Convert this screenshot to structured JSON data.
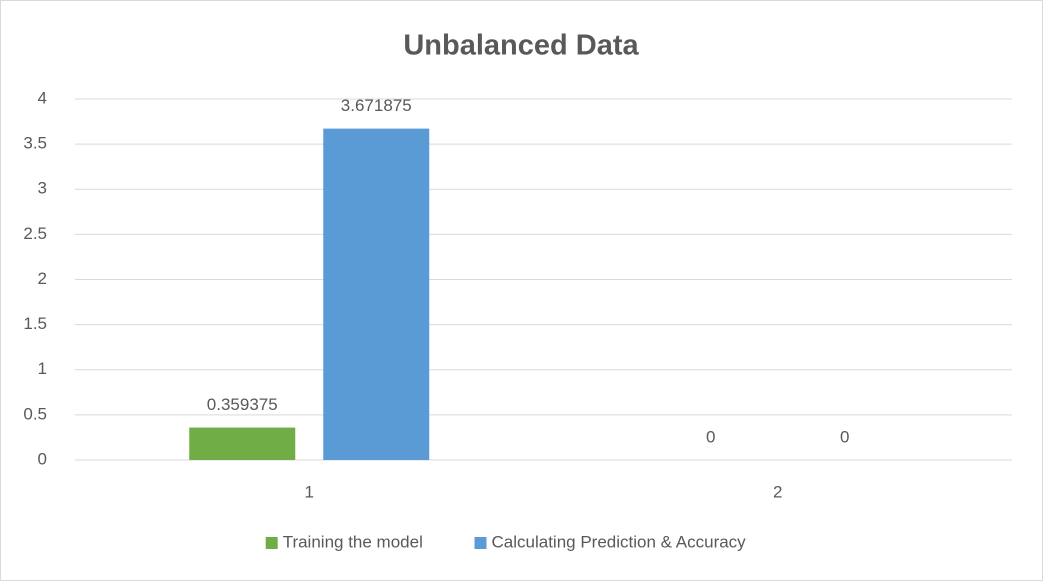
{
  "chart_data": {
    "type": "bar",
    "title": "Unbalanced Data",
    "categories": [
      "1",
      "2"
    ],
    "series": [
      {
        "name": "Training the model",
        "color": "#70ad47",
        "values": [
          0.359375,
          0
        ]
      },
      {
        "name": "Calculating Prediction & Accuracy",
        "color": "#5b9bd5",
        "values": [
          3.671875,
          0
        ]
      }
    ],
    "ylim": [
      0,
      4
    ],
    "yticks": [
      0,
      0.5,
      1,
      1.5,
      2,
      2.5,
      3,
      3.5,
      4
    ],
    "grid": true,
    "legend": "bottom"
  }
}
